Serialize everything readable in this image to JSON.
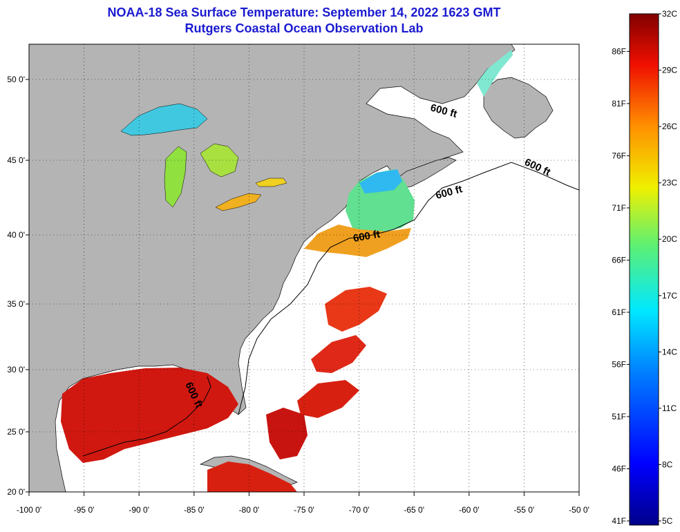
{
  "header": {
    "title": "NOAA-18 Sea Surface Temperature:  September 14, 2022 1623 GMT",
    "subtitle": "Rutgers Coastal Ocean Observation Lab"
  },
  "map": {
    "lon_ticks": [
      "-100 0'",
      "-95 0'",
      "-90 0'",
      "-85 0'",
      "-80 0'",
      "-75 0'",
      "-70 0'",
      "-65 0'",
      "-60 0'",
      "-55 0'",
      "-50 0'"
    ],
    "lat_ticks": [
      "50 0'",
      "45 0'",
      "40 0'",
      "35 0'",
      "30 0'",
      "25 0'",
      "20 0'"
    ],
    "isobath_labels": [
      "600 ft",
      "600 ft",
      "600 ft",
      "600 ft",
      "600 ft"
    ],
    "colors": {
      "land": "#b4b4b4",
      "no_data": "#ffffff",
      "warm": "#d81010",
      "hot": "#b00000",
      "mid": "#f07a10",
      "cool": "#20d0e0",
      "green": "#80e040"
    }
  },
  "colorbar": {
    "celsius_labels": [
      "32C",
      "29C",
      "26C",
      "23C",
      "20C",
      "17C",
      "14C",
      "11C",
      "8C",
      "5C"
    ],
    "fahrenheit_labels": [
      "86F",
      "81F",
      "76F",
      "71F",
      "66F",
      "61F",
      "56F",
      "51F",
      "46F",
      "41F"
    ],
    "celsius_values": [
      32,
      29,
      26,
      23,
      20,
      17,
      14,
      11,
      8,
      5
    ],
    "fahrenheit_values": [
      86,
      81,
      76,
      71,
      66,
      61,
      56,
      51,
      46,
      41
    ]
  }
}
